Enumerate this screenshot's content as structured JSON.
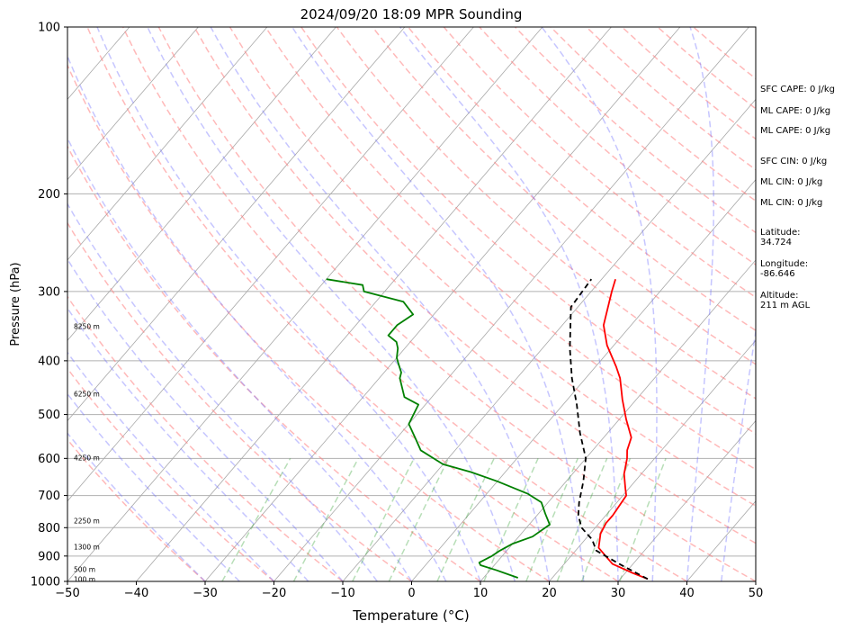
{
  "chart_data": {
    "type": "line",
    "subtype": "skew-T log-P sounding",
    "title": "2024/09/20 18:09 MPR Sounding",
    "xlabel": "Temperature (°C)",
    "ylabel": "Pressure (hPa)",
    "xlim": [
      -50,
      50
    ],
    "ylim": [
      1000,
      100
    ],
    "y_scale": "log",
    "grid": true,
    "x_ticks": [
      "−50",
      "−40",
      "−30",
      "−20",
      "−10",
      "0",
      "10",
      "20",
      "30",
      "40",
      "50"
    ],
    "y_ticks": [
      "100",
      "200",
      "300",
      "400",
      "500",
      "600",
      "700",
      "800",
      "900",
      "1000"
    ],
    "series": [
      {
        "color": "#ff0000",
        "points": [
          [
            34,
            990
          ],
          [
            31,
            965
          ],
          [
            27,
            930
          ],
          [
            23,
            870
          ],
          [
            21.5,
            820
          ],
          [
            21,
            785
          ],
          [
            21,
            760
          ],
          [
            20.5,
            700
          ],
          [
            19.5,
            680
          ],
          [
            17.5,
            640
          ],
          [
            16,
            600
          ],
          [
            15,
            580
          ],
          [
            14,
            550
          ],
          [
            11,
            510
          ],
          [
            8,
            470
          ],
          [
            5,
            430
          ],
          [
            3,
            410
          ],
          [
            -1,
            375
          ],
          [
            -4,
            345
          ],
          [
            -7,
            300
          ],
          [
            -8,
            285
          ]
        ]
      },
      {
        "color": "#008000",
        "points": [
          [
            15,
            985
          ],
          [
            11,
            955
          ],
          [
            8,
            935
          ],
          [
            7.5,
            925
          ],
          [
            8.5,
            900
          ],
          [
            9,
            880
          ],
          [
            10,
            855
          ],
          [
            12,
            830
          ],
          [
            13,
            790
          ],
          [
            11,
            755
          ],
          [
            9,
            720
          ],
          [
            6,
            695
          ],
          [
            0,
            660
          ],
          [
            -5,
            635
          ],
          [
            -10,
            615
          ],
          [
            -15,
            580
          ],
          [
            -17,
            555
          ],
          [
            -20,
            520
          ],
          [
            -20.5,
            500
          ],
          [
            -21,
            480
          ],
          [
            -24,
            465
          ],
          [
            -27,
            430
          ],
          [
            -27.5,
            420
          ],
          [
            -29,
            405
          ],
          [
            -30,
            395
          ],
          [
            -31,
            380
          ],
          [
            -32,
            370
          ],
          [
            -34,
            360
          ],
          [
            -34,
            345
          ],
          [
            -33,
            330
          ],
          [
            -36,
            313
          ],
          [
            -43,
            300
          ],
          [
            -44,
            292
          ],
          [
            -50,
            285
          ]
        ]
      },
      {
        "color": "#000000",
        "dashed": true,
        "points": [
          [
            34,
            990
          ],
          [
            28,
            930
          ],
          [
            23,
            880
          ],
          [
            21,
            840
          ],
          [
            18,
            800
          ],
          [
            16,
            760
          ],
          [
            14.5,
            720
          ],
          [
            12.5,
            660
          ],
          [
            10,
            600
          ],
          [
            6,
            540
          ],
          [
            2,
            480
          ],
          [
            -2,
            430
          ],
          [
            -6,
            380
          ],
          [
            -11,
            320
          ],
          [
            -11.5,
            285
          ]
        ]
      }
    ],
    "height_labels": [
      {
        "text": "100 m",
        "p": 995
      },
      {
        "text": "500 m",
        "p": 955
      },
      {
        "text": "1300 m",
        "p": 870
      },
      {
        "text": "2250 m",
        "p": 780
      },
      {
        "text": "4250 m",
        "p": 600
      },
      {
        "text": "6250 m",
        "p": 460
      },
      {
        "text": "8250 m",
        "p": 348
      }
    ],
    "annotations": [
      {
        "text": "SFC CAPE: 0 J/kg"
      },
      {
        "text": "ML CAPE: 0 J/kg"
      },
      {
        "text": "ML CAPE: 0 J/kg"
      },
      {
        "text": "SFC CIN: 0 J/kg"
      },
      {
        "text": "ML CIN: 0 J/kg"
      },
      {
        "text": "ML CIN: 0 J/kg"
      },
      {
        "text": "Latitude:\n34.724"
      },
      {
        "text": "Longitude:\n-86.646"
      },
      {
        "text": "Altitude:\n211 m AGL"
      }
    ]
  }
}
